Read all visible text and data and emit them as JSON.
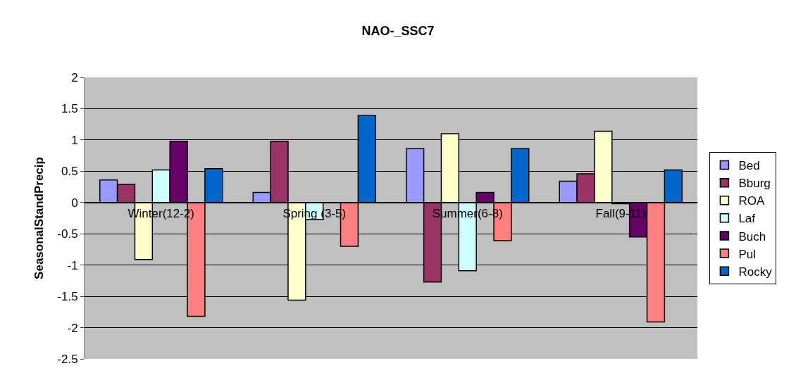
{
  "chart_data": {
    "type": "bar",
    "title": "NAO-_SSC7",
    "ylabel": "SeasonalStandPrecip",
    "categories": [
      "Winter(12-2)",
      "Spring (3-5)",
      "Summer(6-8)",
      "Fall(9-11)"
    ],
    "series": [
      {
        "name": "Bed",
        "color": "#9999ff",
        "values": [
          0.36,
          0.16,
          0.86,
          0.34
        ]
      },
      {
        "name": "Bburg",
        "color": "#993366",
        "values": [
          0.29,
          0.98,
          -1.27,
          0.46
        ]
      },
      {
        "name": "ROA",
        "color": "#ffffcc",
        "values": [
          -0.91,
          -1.56,
          1.1,
          1.14
        ]
      },
      {
        "name": "Laf",
        "color": "#ccffff",
        "values": [
          0.52,
          -0.27,
          -1.09,
          -0.02
        ]
      },
      {
        "name": "Buch",
        "color": "#660066",
        "values": [
          0.98,
          null,
          0.16,
          -0.55
        ]
      },
      {
        "name": "Pul",
        "color": "#ff8080",
        "values": [
          -1.82,
          -0.7,
          -0.61,
          -1.91
        ]
      },
      {
        "name": "Rocky",
        "color": "#0066cc",
        "values": [
          0.54,
          1.39,
          0.86,
          0.52
        ]
      }
    ],
    "ylim": [
      -2.5,
      2
    ],
    "yticks": [
      -2.5,
      -2,
      -1.5,
      -1,
      -0.5,
      0,
      0.5,
      1,
      1.5,
      2
    ],
    "grid": "y",
    "legend": "right"
  }
}
